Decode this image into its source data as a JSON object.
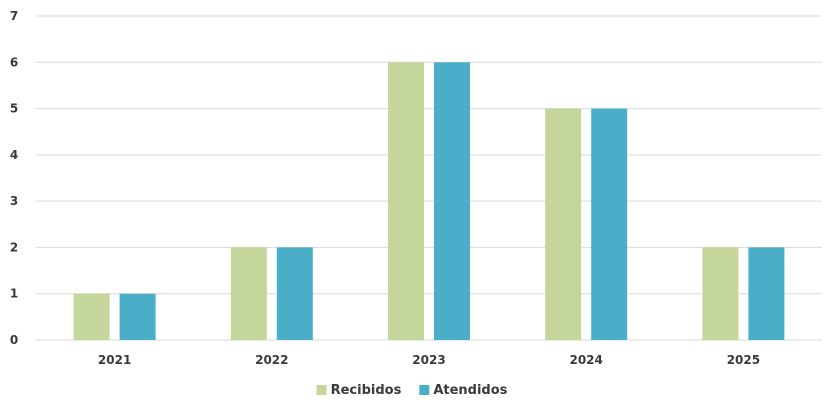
{
  "chart_data": {
    "type": "bar",
    "categories": [
      "2021",
      "2022",
      "2023",
      "2024",
      "2025"
    ],
    "series": [
      {
        "name": "Recibidos",
        "values": [
          1,
          2,
          6,
          5,
          2
        ],
        "color": "#c5d69a"
      },
      {
        "name": "Atendidos",
        "values": [
          1,
          2,
          6,
          5,
          2
        ],
        "color": "#4aaec8"
      }
    ],
    "ylim": [
      0,
      7
    ],
    "yticks": [
      "0",
      "1",
      "2",
      "3",
      "4",
      "5",
      "6",
      "7"
    ],
    "grid": true,
    "legend_position": "bottom-center"
  }
}
